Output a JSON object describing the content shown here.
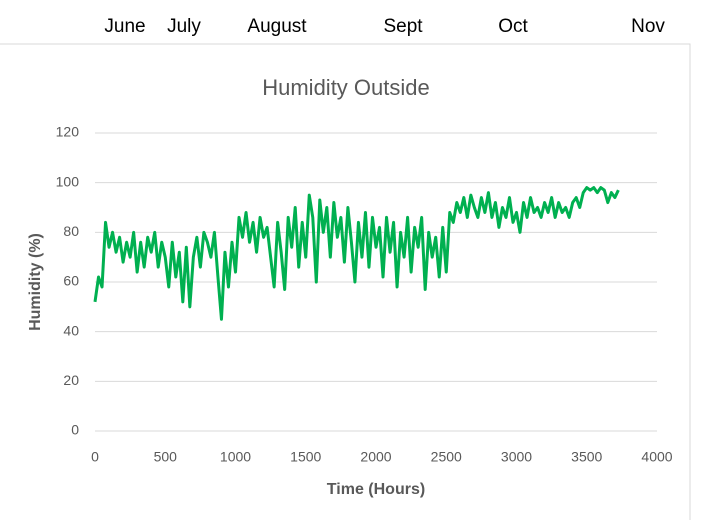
{
  "month_labels": [
    "June",
    "July",
    "August",
    "Sept",
    "Oct",
    "Nov"
  ],
  "chart_data": {
    "type": "line",
    "title": "Humidity Outside",
    "xlabel": "Time (Hours)",
    "ylabel": "Humidity (%)",
    "xlim": [
      0,
      4000
    ],
    "ylim": [
      0,
      120
    ],
    "xticks": [
      0,
      500,
      1000,
      1500,
      2000,
      2500,
      3000,
      3500,
      4000
    ],
    "yticks": [
      0,
      20,
      40,
      60,
      80,
      100,
      120
    ],
    "grid": true,
    "x": [
      0,
      25,
      50,
      75,
      100,
      125,
      150,
      175,
      200,
      225,
      250,
      275,
      300,
      325,
      350,
      375,
      400,
      425,
      450,
      475,
      500,
      525,
      550,
      575,
      600,
      625,
      650,
      675,
      700,
      725,
      750,
      775,
      800,
      825,
      850,
      875,
      900,
      925,
      950,
      975,
      1000,
      1025,
      1050,
      1075,
      1100,
      1125,
      1150,
      1175,
      1200,
      1225,
      1250,
      1275,
      1300,
      1325,
      1350,
      1375,
      1400,
      1425,
      1450,
      1475,
      1500,
      1525,
      1550,
      1575,
      1600,
      1625,
      1650,
      1675,
      1700,
      1725,
      1750,
      1775,
      1800,
      1825,
      1850,
      1875,
      1900,
      1925,
      1950,
      1975,
      2000,
      2025,
      2050,
      2075,
      2100,
      2125,
      2150,
      2175,
      2200,
      2225,
      2250,
      2275,
      2300,
      2325,
      2350,
      2375,
      2400,
      2425,
      2450,
      2475,
      2500,
      2525,
      2550,
      2575,
      2600,
      2625,
      2650,
      2675,
      2700,
      2725,
      2750,
      2775,
      2800,
      2825,
      2850,
      2875,
      2900,
      2925,
      2950,
      2975,
      3000,
      3025,
      3050,
      3075,
      3100,
      3125,
      3150,
      3175,
      3200,
      3225,
      3250,
      3275,
      3300,
      3325,
      3350,
      3375,
      3400,
      3425,
      3450,
      3475,
      3500,
      3525,
      3550,
      3575,
      3600,
      3625,
      3650,
      3675,
      3700,
      3725
    ],
    "series": [
      {
        "name": "Humidity",
        "color": "#00b050",
        "values": [
          52,
          62,
          58,
          84,
          74,
          80,
          72,
          78,
          68,
          76,
          70,
          80,
          64,
          76,
          66,
          78,
          72,
          80,
          66,
          76,
          70,
          58,
          76,
          62,
          72,
          52,
          74,
          50,
          70,
          78,
          66,
          80,
          76,
          70,
          80,
          62,
          45,
          72,
          58,
          76,
          64,
          86,
          78,
          88,
          76,
          84,
          72,
          86,
          78,
          82,
          70,
          58,
          84,
          72,
          57,
          86,
          74,
          90,
          66,
          84,
          70,
          95,
          86,
          60,
          93,
          80,
          90,
          70,
          92,
          78,
          86,
          68,
          90,
          76,
          60,
          84,
          70,
          88,
          66,
          86,
          74,
          82,
          62,
          86,
          72,
          84,
          58,
          80,
          70,
          86,
          64,
          82,
          74,
          86,
          57,
          80,
          70,
          78,
          62,
          82,
          64,
          88,
          84,
          92,
          88,
          94,
          86,
          95,
          90,
          86,
          94,
          88,
          96,
          86,
          92,
          82,
          90,
          86,
          94,
          84,
          88,
          80,
          92,
          86,
          94,
          88,
          90,
          86,
          92,
          88,
          94,
          86,
          92,
          88,
          90,
          86,
          92,
          94,
          90,
          96,
          98,
          97,
          98,
          96,
          98,
          97,
          92,
          96,
          94,
          97
        ]
      }
    ]
  }
}
